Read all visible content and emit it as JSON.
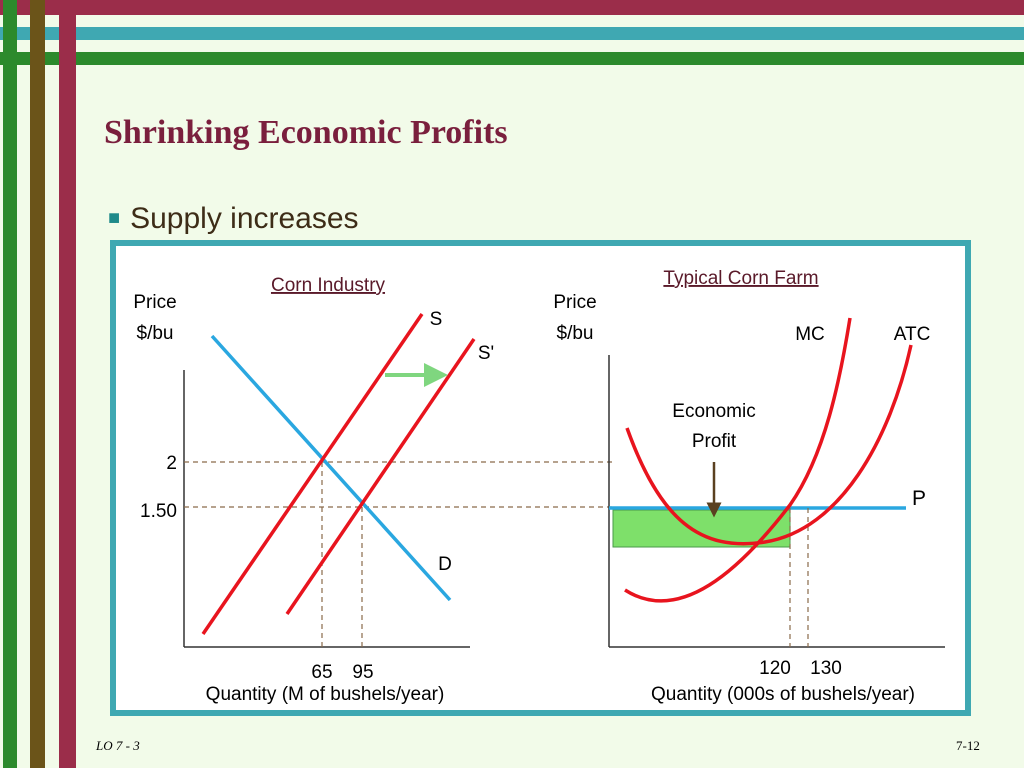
{
  "slide": {
    "title": "Shrinking Economic Profits",
    "bullet": "Supply increases",
    "footer_left": "LO 7 - 3",
    "footer_right": "7-12"
  },
  "industry": {
    "title": "Corn Industry",
    "y_label_line1": "Price",
    "y_label_line2": "$/bu",
    "x_label": "Quantity (M of bushels/year)",
    "price_ticks": [
      "2",
      "1.50"
    ],
    "qty_ticks": [
      "65",
      "95"
    ],
    "supply_label": "S",
    "new_supply_label": "S'",
    "demand_label": "D"
  },
  "farm": {
    "title": "Typical Corn Farm",
    "y_label_line1": "Price",
    "y_label_line2": "$/bu",
    "x_label": "Quantity (000s of bushels/year)",
    "qty_ticks": [
      "120",
      "130"
    ],
    "mc_label": "MC",
    "atc_label": "ATC",
    "price_label": "P",
    "profit_label_line1": "Economic",
    "profit_label_line2": "Profit"
  },
  "colors": {
    "curve_red": "#e8141e",
    "demand_blue": "#2aa7e0",
    "arrow_green": "#7fd67f",
    "profit_fill": "#7ee06a",
    "title_maroon": "#7a1f3d",
    "frame_teal": "#3fa8b2"
  }
}
